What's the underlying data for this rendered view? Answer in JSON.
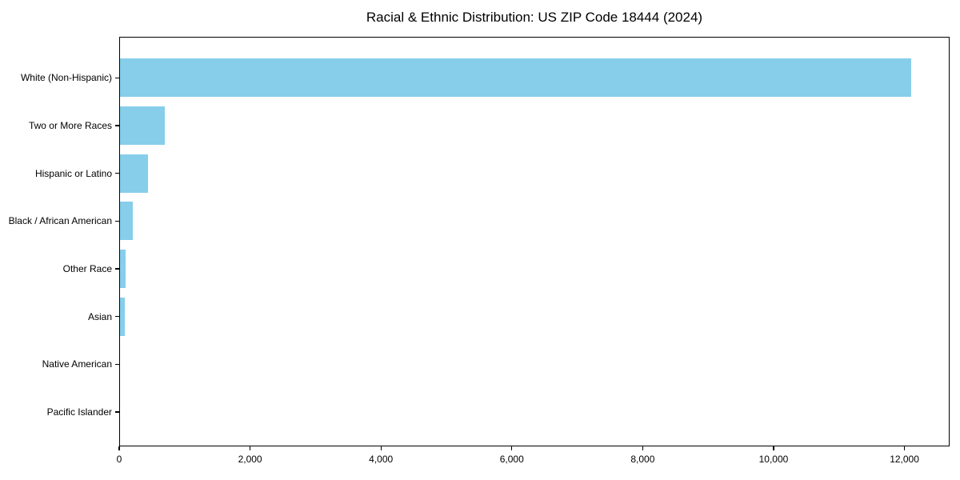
{
  "chart_data": {
    "type": "bar",
    "orientation": "horizontal",
    "title": "Racial & Ethnic Distribution: US ZIP Code 18444 (2024)",
    "xlabel": "",
    "ylabel": "",
    "categories": [
      "White (Non-Hispanic)",
      "Two or More Races",
      "Hispanic or Latino",
      "Black / African American",
      "Other Race",
      "Asian",
      "Native American",
      "Pacific Islander"
    ],
    "values": [
      12085,
      680,
      425,
      200,
      80,
      75,
      0,
      0
    ],
    "xlim": [
      0,
      12690
    ],
    "x_ticks": [
      0,
      2000,
      4000,
      6000,
      8000,
      10000,
      12000
    ],
    "x_tick_labels": [
      "0",
      "2,000",
      "4,000",
      "6,000",
      "8,000",
      "10,000",
      "12,000"
    ],
    "bar_color": "#87CEEB",
    "background_color": "#ffffff",
    "axis_color": "#000000",
    "grid": false,
    "legend": null,
    "value_labels_shown": false
  }
}
